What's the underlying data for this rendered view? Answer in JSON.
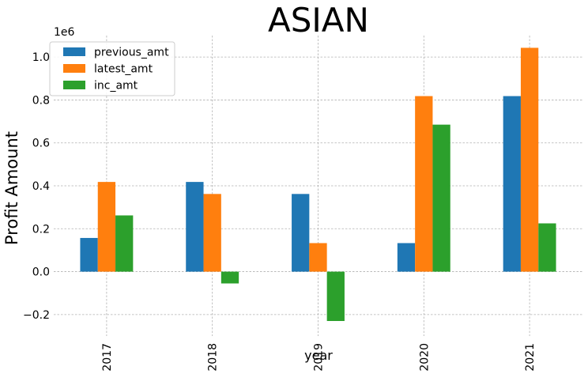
{
  "chart_data": {
    "type": "bar",
    "title": "ASIAN",
    "xlabel": "year",
    "ylabel": "Profit Amount",
    "y_offset_label": "1e6",
    "categories": [
      "2017",
      "2018",
      "2019",
      "2020",
      "2021"
    ],
    "series": [
      {
        "name": "previous_amt",
        "color": "#1f77b4",
        "values": [
          157000,
          418000,
          362000,
          133000,
          818000
        ]
      },
      {
        "name": "latest_amt",
        "color": "#ff7f0e",
        "values": [
          418000,
          362000,
          133000,
          818000,
          1043000
        ]
      },
      {
        "name": "inc_amt",
        "color": "#2ca02c",
        "values": [
          262000,
          -55000,
          -230000,
          685000,
          225000
        ]
      }
    ],
    "ylim": [
      -0.3,
      1.1
    ],
    "ytick_values": [
      -0.2,
      0.0,
      0.2,
      0.4,
      0.6,
      0.8,
      1.0
    ],
    "ytick_labels": [
      "−0.2",
      "0.0",
      "0.2",
      "0.4",
      "0.6",
      "0.8",
      "1.0"
    ],
    "y_scale": 1000000,
    "grid": true,
    "legend_position": "top-left",
    "xtick_rotation": "vertical"
  }
}
